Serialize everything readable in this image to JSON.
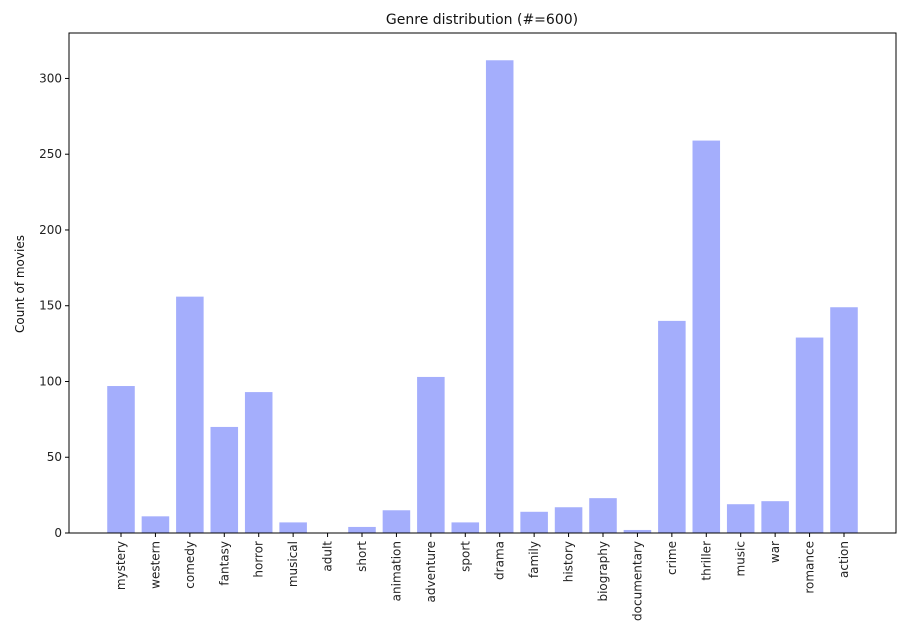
{
  "chart_data": {
    "type": "bar",
    "title": "Genre distribution (#=600)",
    "xlabel": "",
    "ylabel": "Count of movies",
    "categories": [
      "mystery",
      "western",
      "comedy",
      "fantasy",
      "horror",
      "musical",
      "adult",
      "short",
      "animation",
      "adventure",
      "sport",
      "drama",
      "family",
      "history",
      "biography",
      "documentary",
      "crime",
      "thriller",
      "music",
      "war",
      "romance",
      "action"
    ],
    "values": [
      97,
      11,
      156,
      70,
      93,
      7,
      0,
      4,
      15,
      103,
      7,
      312,
      14,
      17,
      23,
      2,
      140,
      259,
      19,
      21,
      129,
      149
    ],
    "ylim": [
      0,
      330
    ],
    "yticks": [
      0,
      50,
      100,
      150,
      200,
      250,
      300
    ],
    "bar_color": "#a4aefc",
    "grid": false
  }
}
